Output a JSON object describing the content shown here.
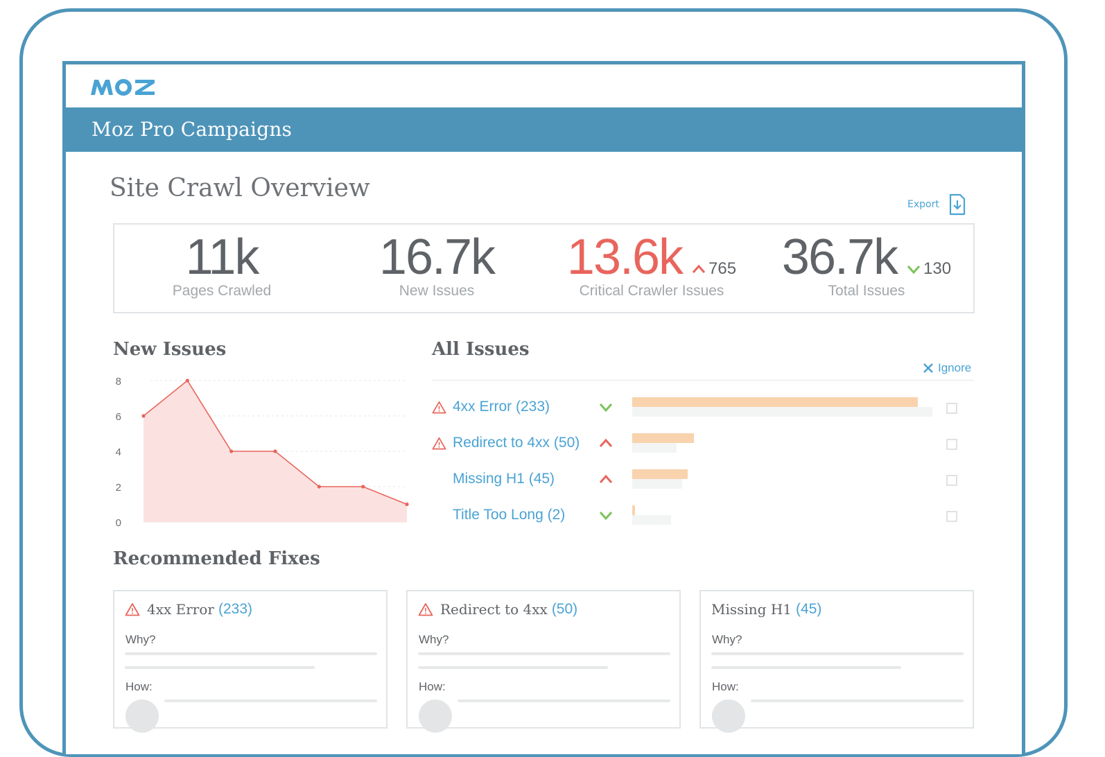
{
  "brand": {
    "logo_text": "MOZ",
    "accent": "#4e94b9",
    "link": "#4aa3d4",
    "alert": "#e8655c",
    "good": "#7cc35a"
  },
  "header": {
    "title": "Moz Pro Campaigns"
  },
  "page": {
    "title": "Site Crawl Overview",
    "export_label": "Export"
  },
  "stats": [
    {
      "value": "11k",
      "label": "Pages Crawled"
    },
    {
      "value": "16.7k",
      "label": "New Issues"
    },
    {
      "value": "13.6k",
      "label": "Critical Crawler Issues",
      "delta": "765",
      "delta_dir": "up"
    },
    {
      "value": "36.7k",
      "label": "Total Issues",
      "delta": "130",
      "delta_dir": "down"
    }
  ],
  "new_issues": {
    "title": "New Issues"
  },
  "chart_data": {
    "type": "area",
    "x": [
      1,
      2,
      3,
      4,
      5,
      6,
      7
    ],
    "y": [
      6,
      8,
      4,
      4,
      2,
      2,
      1
    ],
    "yticks": [
      0,
      2,
      4,
      6,
      8
    ],
    "ylim": [
      0,
      8
    ],
    "grid": true,
    "color": "#e8655c"
  },
  "all_issues": {
    "title": "All Issues",
    "ignore_label": "Ignore",
    "items": [
      {
        "label": "4xx Error (233)",
        "warning": true,
        "trend": "down",
        "current": 1.0,
        "previous": 1.05
      },
      {
        "label": "Redirect to 4xx (50)",
        "warning": true,
        "trend": "up",
        "current": 0.215,
        "previous": 0.155
      },
      {
        "label": "Missing H1 (45)",
        "warning": false,
        "trend": "up",
        "current": 0.195,
        "previous": 0.175
      },
      {
        "label": "Title Too Long (2)",
        "warning": false,
        "trend": "down",
        "current": 0.01,
        "previous": 0.135
      }
    ]
  },
  "fixes": {
    "title": "Recommended Fixes",
    "why_label": "Why?",
    "how_label": "How:",
    "cards": [
      {
        "name": "4xx Error",
        "count": "(233)",
        "warning": true
      },
      {
        "name": "Redirect to 4xx",
        "count": "(50)",
        "warning": true
      },
      {
        "name": "Missing H1",
        "count": "(45)",
        "warning": false
      }
    ]
  }
}
